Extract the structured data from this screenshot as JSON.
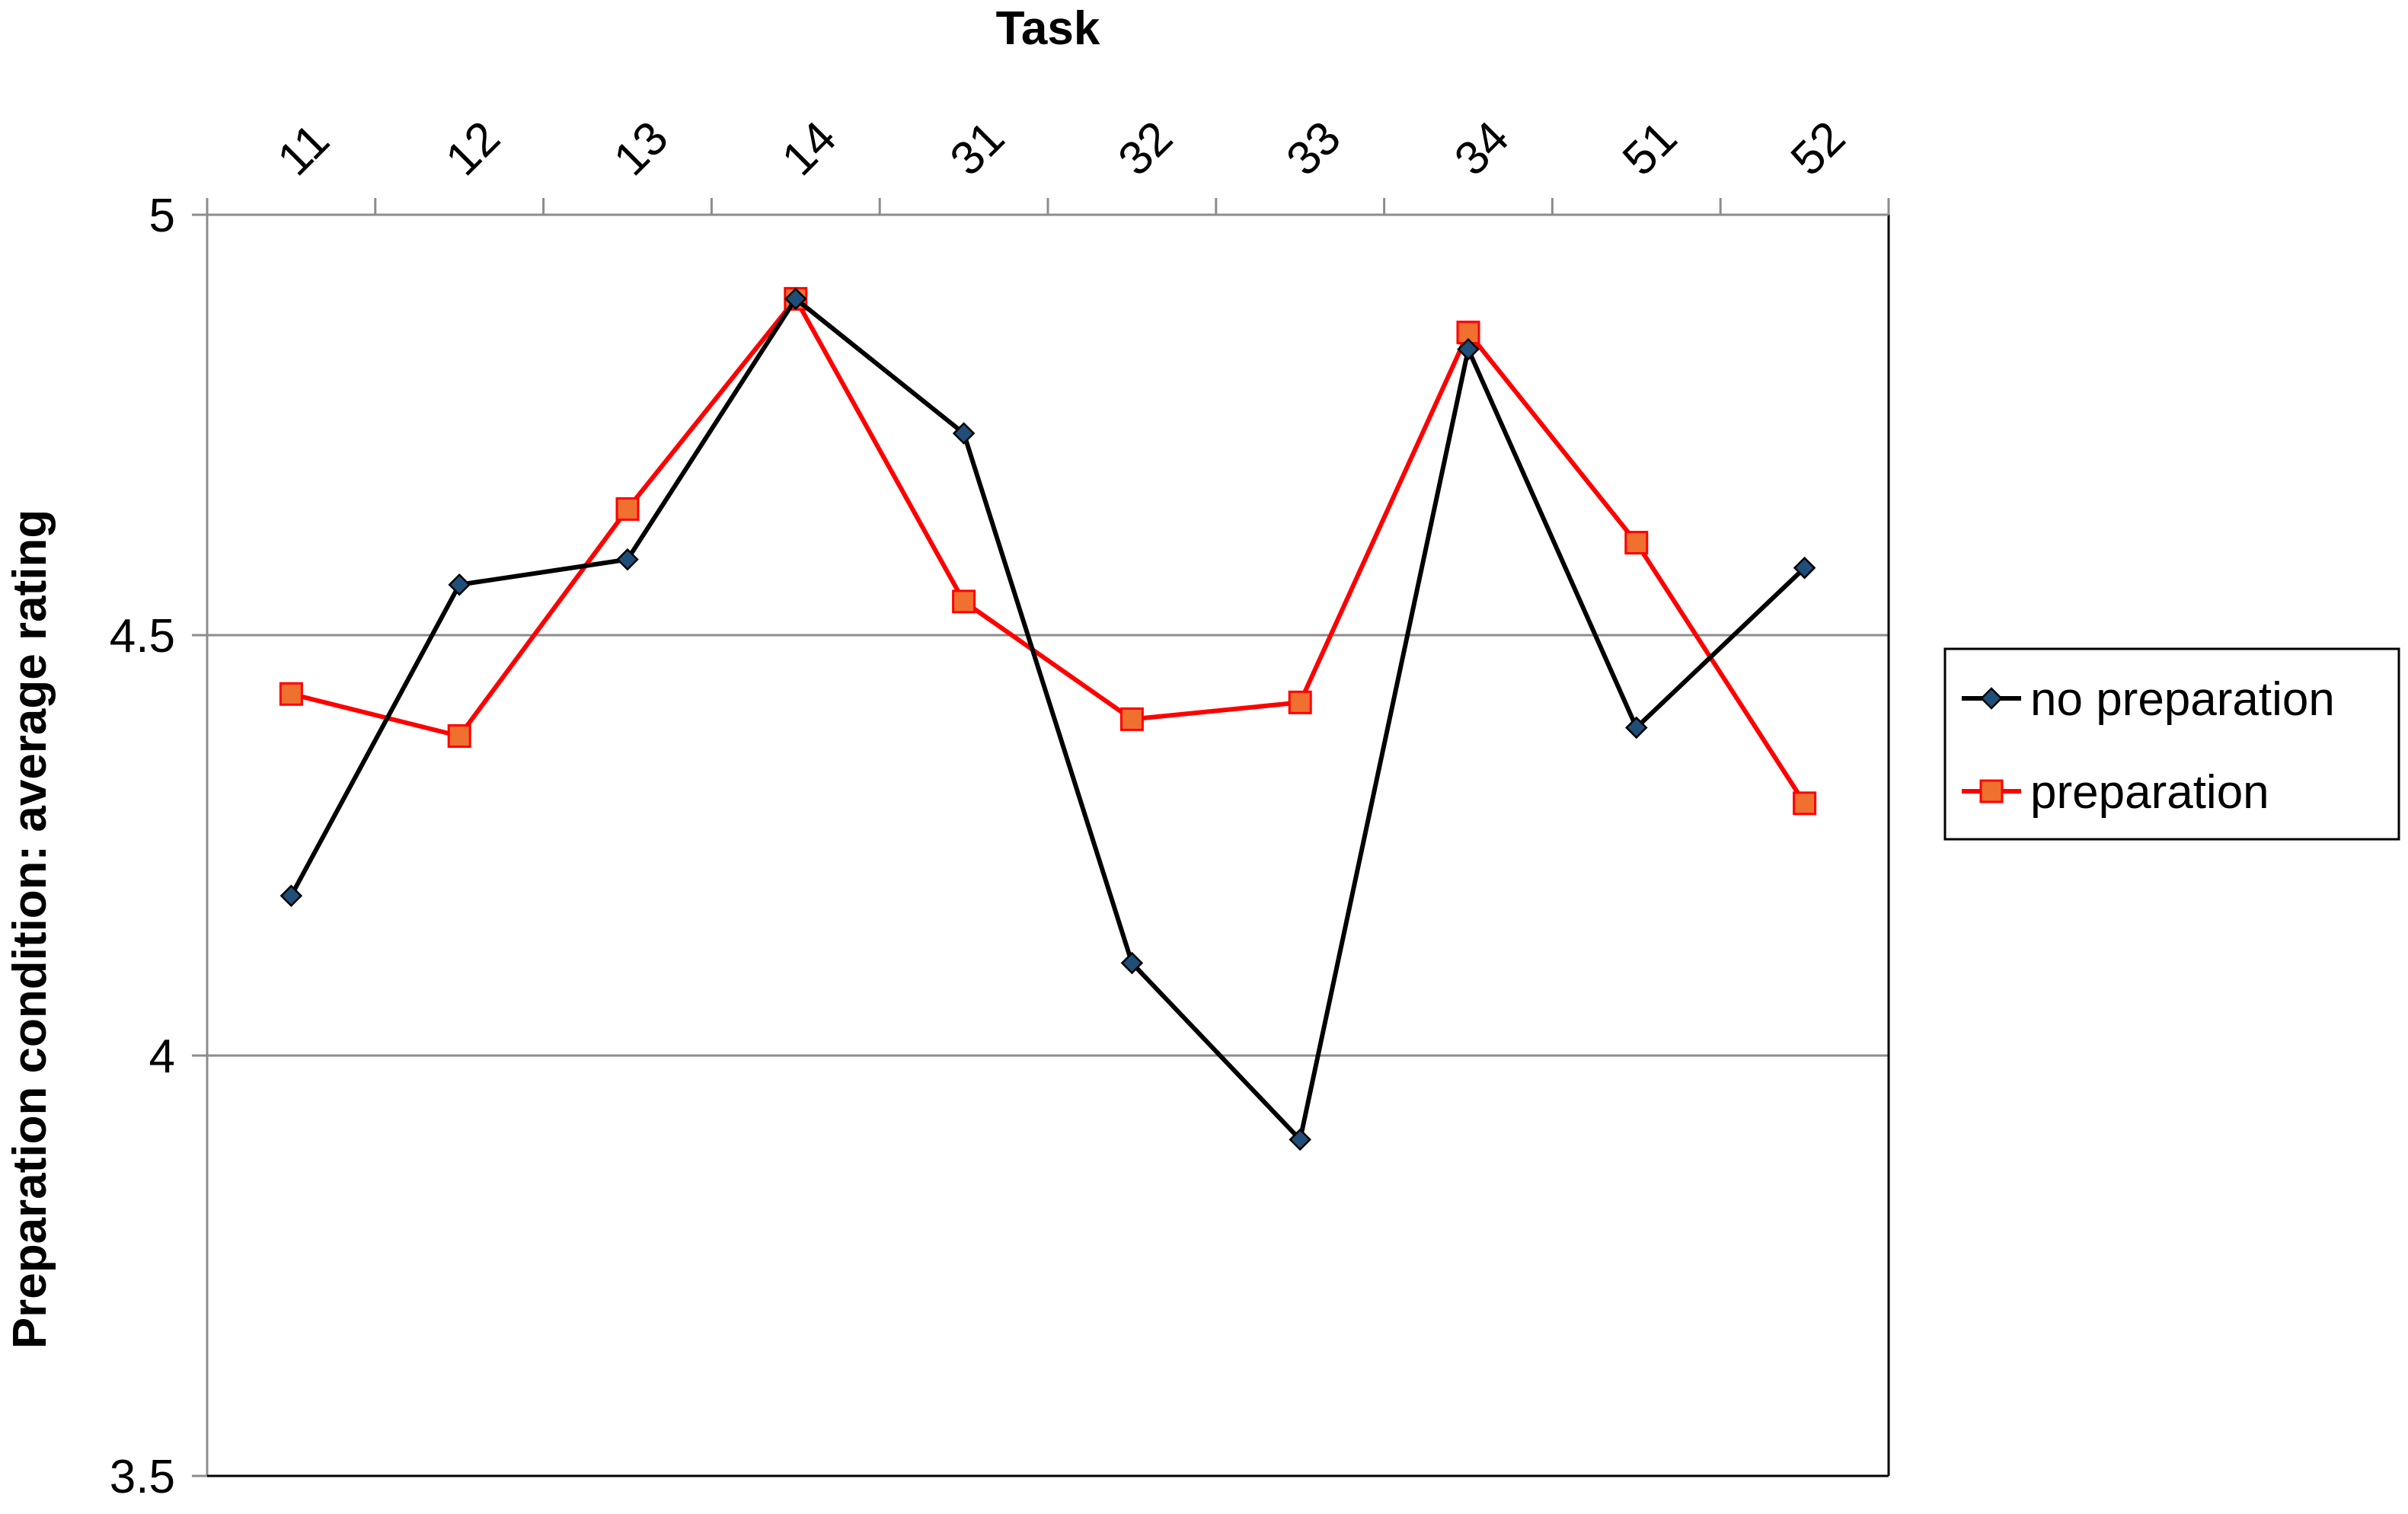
{
  "chart_data": {
    "type": "line",
    "xlabel": "Task",
    "ylabel": "Preparation condition: average rating",
    "categories": [
      "11",
      "12",
      "13",
      "14",
      "31",
      "32",
      "33",
      "34",
      "51",
      "52"
    ],
    "ylim": [
      3.5,
      5
    ],
    "yticks": [
      "3.5",
      "4",
      "4.5",
      "5"
    ],
    "ytick_values": [
      3.5,
      4,
      4.5,
      5
    ],
    "x_axis_position": "top",
    "grid": "horizontal",
    "legend_position": "right",
    "series": [
      {
        "name": "no preparation",
        "color": "#000000",
        "marker": "diamond",
        "marker_color": "#1f4e79",
        "values": [
          4.19,
          4.56,
          4.59,
          4.9,
          4.74,
          4.11,
          3.9,
          4.84,
          4.39,
          4.58
        ]
      },
      {
        "name": "preparation",
        "color": "#ff0000",
        "marker": "square",
        "marker_color": "#f07030",
        "values": [
          4.43,
          4.38,
          4.65,
          4.9,
          4.54,
          4.4,
          4.42,
          4.86,
          4.61,
          4.3
        ]
      }
    ]
  }
}
